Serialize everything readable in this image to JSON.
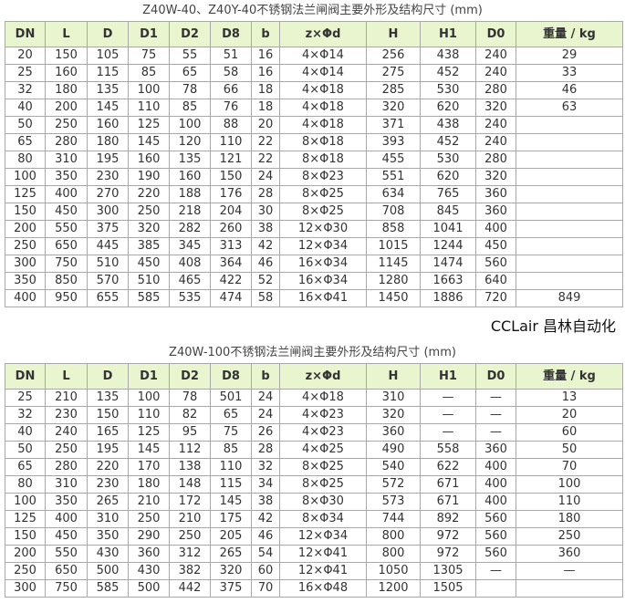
{
  "tables": [
    {
      "title": "Z40W-40、Z40Y-40不锈钢法兰闸阀主要外形及结构尺寸 (mm)",
      "headers": [
        "DN",
        "L",
        "D",
        "D1",
        "D2",
        "D8",
        "b",
        "z×Φd",
        "H",
        "H1",
        "D0",
        "重量 / kg"
      ],
      "rows": [
        [
          "20",
          "150",
          "105",
          "75",
          "55",
          "51",
          "16",
          "4×Φ14",
          "256",
          "438",
          "240",
          "29"
        ],
        [
          "25",
          "160",
          "115",
          "85",
          "65",
          "58",
          "16",
          "4×Φ14",
          "275",
          "452",
          "240",
          "33"
        ],
        [
          "32",
          "180",
          "135",
          "100",
          "78",
          "66",
          "18",
          "4×Φ18",
          "285",
          "530",
          "280",
          "46"
        ],
        [
          "40",
          "200",
          "145",
          "110",
          "85",
          "76",
          "18",
          "4×Φ18",
          "320",
          "620",
          "320",
          "63"
        ],
        [
          "50",
          "250",
          "160",
          "125",
          "100",
          "88",
          "20",
          "4×Φ18",
          "371",
          "438",
          "240",
          ""
        ],
        [
          "65",
          "280",
          "180",
          "145",
          "120",
          "110",
          "22",
          "8×Φ18",
          "393",
          "452",
          "240",
          ""
        ],
        [
          "80",
          "310",
          "195",
          "160",
          "135",
          "121",
          "22",
          "8×Φ18",
          "455",
          "530",
          "280",
          ""
        ],
        [
          "100",
          "350",
          "230",
          "190",
          "160",
          "150",
          "24",
          "8×Φ23",
          "551",
          "620",
          "320",
          ""
        ],
        [
          "125",
          "400",
          "270",
          "220",
          "188",
          "176",
          "28",
          "8×Φ25",
          "634",
          "765",
          "360",
          ""
        ],
        [
          "150",
          "450",
          "300",
          "250",
          "218",
          "204",
          "30",
          "8×Φ25",
          "708",
          "845",
          "360",
          ""
        ],
        [
          "200",
          "550",
          "375",
          "320",
          "282",
          "260",
          "38",
          "12×Φ30",
          "858",
          "1041",
          "400",
          ""
        ],
        [
          "250",
          "650",
          "445",
          "385",
          "345",
          "313",
          "42",
          "12×Φ34",
          "1015",
          "1244",
          "450",
          ""
        ],
        [
          "300",
          "750",
          "510",
          "450",
          "408",
          "364",
          "46",
          "16×Φ34",
          "1145",
          "1474",
          "560",
          ""
        ],
        [
          "350",
          "850",
          "570",
          "510",
          "465",
          "422",
          "52",
          "16×Φ34",
          "1280",
          "1663",
          "640",
          ""
        ],
        [
          "400",
          "950",
          "655",
          "585",
          "535",
          "474",
          "58",
          "16×Φ41",
          "1450",
          "1886",
          "720",
          "849"
        ]
      ]
    },
    {
      "title": "Z40W-100不锈钢法兰闸阀主要外形及结构尺寸 (mm)",
      "headers": [
        "DN",
        "L",
        "D",
        "D1",
        "D2",
        "D8",
        "b",
        "z×Φd",
        "H",
        "H1",
        "D0",
        "重量 / kg"
      ],
      "rows": [
        [
          "25",
          "210",
          "135",
          "100",
          "78",
          "501",
          "24",
          "4×Φ18",
          "310",
          "—",
          "—",
          "13"
        ],
        [
          "32",
          "230",
          "150",
          "110",
          "82",
          "65",
          "24",
          "4×Φ23",
          "320",
          "—",
          "—",
          "20"
        ],
        [
          "40",
          "240",
          "165",
          "125",
          "95",
          "75",
          "26",
          "4×Φ23",
          "360",
          "—",
          "—",
          "60"
        ],
        [
          "50",
          "250",
          "195",
          "145",
          "112",
          "85",
          "28",
          "4×Φ25",
          "490",
          "558",
          "360",
          "50"
        ],
        [
          "65",
          "280",
          "220",
          "170",
          "138",
          "110",
          "32",
          "8×Φ25",
          "540",
          "622",
          "400",
          "70"
        ],
        [
          "80",
          "310",
          "230",
          "180",
          "148",
          "115",
          "34",
          "8×Φ25",
          "572",
          "671",
          "400",
          "100"
        ],
        [
          "100",
          "350",
          "265",
          "210",
          "172",
          "145",
          "38",
          "8×Φ30",
          "573",
          "671",
          "400",
          "110"
        ],
        [
          "125",
          "400",
          "310",
          "250",
          "210",
          "175",
          "42",
          "8×Φ34",
          "744",
          "892",
          "560",
          "180"
        ],
        [
          "150",
          "450",
          "350",
          "290",
          "250",
          "205",
          "46",
          "12×Φ34",
          "800",
          "972",
          "560",
          "250"
        ],
        [
          "200",
          "550",
          "430",
          "360",
          "312",
          "265",
          "54",
          "12×Φ41",
          "800",
          "972",
          "560",
          "360"
        ],
        [
          "250",
          "650",
          "500",
          "430",
          "382",
          "320",
          "60",
          "12×Φ41",
          "1050",
          "1305",
          "—",
          "—"
        ],
        [
          "300",
          "750",
          "585",
          "500",
          "442",
          "375",
          "70",
          "16×Φ48",
          "1200",
          "1505",
          "",
          ""
        ]
      ]
    }
  ],
  "watermark": "CCLair 昌林自动化"
}
